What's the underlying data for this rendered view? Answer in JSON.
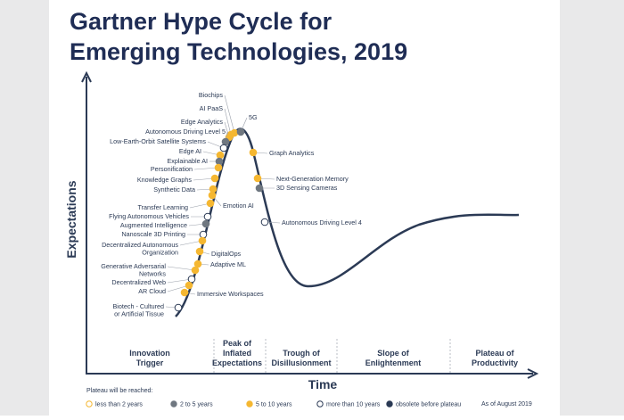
{
  "title": [
    "Gartner Hype Cycle for",
    "Emerging Technologies, 2019"
  ],
  "y_axis_label": "Expectations",
  "x_axis_label": "Time",
  "phases": [
    [
      "Innovation",
      "Trigger"
    ],
    [
      "Peak of",
      "Inflated",
      "Expectations"
    ],
    [
      "Trough of",
      "Disillusionment"
    ],
    [
      "Slope of",
      "Enlightenment"
    ],
    [
      "Plateau of",
      "Productivity"
    ]
  ],
  "technologies": [
    {
      "label": [
        "Biochips"
      ],
      "color": "#f5b731"
    },
    {
      "label": [
        "AI PaaS"
      ],
      "color": "#f5b731"
    },
    {
      "label": [
        "Edge Analytics"
      ],
      "color": "#f5b731"
    },
    {
      "label": [
        "Autonomous Driving Level 5"
      ],
      "color": "#6f7780"
    },
    {
      "label": [
        "Low-Earth-Orbit Satellite Systems"
      ],
      "color": "#ffffff"
    },
    {
      "label": [
        "Edge AI"
      ],
      "color": "#f5b731"
    },
    {
      "label": [
        "Explainable AI"
      ],
      "color": "#6f7780"
    },
    {
      "label": [
        "Personification"
      ],
      "color": "#f5b731"
    },
    {
      "label": [
        "Knowledge Graphs"
      ],
      "color": "#f5b731"
    },
    {
      "label": [
        "Synthetic Data"
      ],
      "color": "#f5b731"
    },
    {
      "label": [
        "Emotion AI"
      ],
      "color": "#f5b731"
    },
    {
      "label": [
        "Transfer Learning"
      ],
      "color": "#f5b731"
    },
    {
      "label": [
        "Flying Autonomous Vehicles"
      ],
      "color": "#ffffff"
    },
    {
      "label": [
        "Augmented Intelligence"
      ],
      "color": "#6f7780"
    },
    {
      "label": [
        "Nanoscale 3D Printing"
      ],
      "color": "#ffffff"
    },
    {
      "label": [
        "Decentralized Autonomous",
        "Organization"
      ],
      "color": "#f5b731"
    },
    {
      "label": [
        "DigitalOps"
      ],
      "color": "#f5b731"
    },
    {
      "label": [
        "Adaptive ML"
      ],
      "color": "#f5b731"
    },
    {
      "label": [
        "Generative Adversarial",
        "Networks"
      ],
      "color": "#f5b731"
    },
    {
      "label": [
        "Decentralized Web"
      ],
      "color": "#ffffff"
    },
    {
      "label": [
        "AR Cloud"
      ],
      "color": "#f5b731"
    },
    {
      "label": [
        "Immersive Workspaces"
      ],
      "color": "#f5b731"
    },
    {
      "label": [
        "Biotech - Cultured",
        "or Artificial Tissue"
      ],
      "color": "#ffffff"
    },
    {
      "label": [
        "5G"
      ],
      "color": "#6f7780"
    },
    {
      "label": [
        "Graph Analytics"
      ],
      "color": "#f5b731"
    },
    {
      "label": [
        "Next-Generation Memory"
      ],
      "color": "#f5b731"
    },
    {
      "label": [
        "3D Sensing Cameras"
      ],
      "color": "#6f7780"
    },
    {
      "label": [
        "Autonomous Driving Level 4"
      ],
      "color": "#ffffff"
    }
  ],
  "legend": {
    "title": "Plateau will be reached:",
    "items": [
      {
        "label": "less than 2 years",
        "color": "#ffffff",
        "border": "#f5b731"
      },
      {
        "label": "2 to 5 years",
        "color": "#6f7780",
        "border": "#6f7780"
      },
      {
        "label": "5 to 10 years",
        "color": "#f5b731",
        "border": "#f5b731"
      },
      {
        "label": "more than 10 years",
        "color": "#ffffff",
        "border": "#2b3a55"
      },
      {
        "label": "obsolete before plateau",
        "color": "#2b3a55",
        "border": "#2b3a55"
      }
    ]
  },
  "footnote": "As of August 2019"
}
